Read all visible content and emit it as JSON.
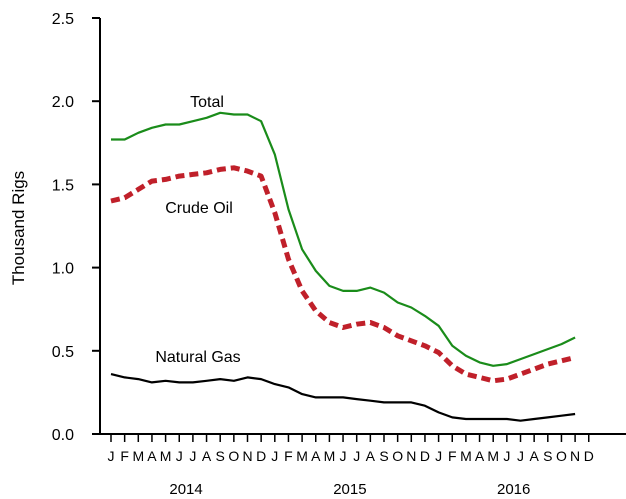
{
  "chart_data": {
    "type": "line",
    "title": "",
    "xlabel": "",
    "ylabel": "Thousand Rigs",
    "ylim": [
      0,
      2.5
    ],
    "yticks": [
      "0.0",
      "0.5",
      "1.0",
      "1.5",
      "2.0",
      "2.5"
    ],
    "month_labels": [
      "J",
      "F",
      "M",
      "A",
      "M",
      "J",
      "J",
      "A",
      "S",
      "O",
      "N",
      "D",
      "J",
      "F",
      "M",
      "A",
      "M",
      "J",
      "J",
      "A",
      "S",
      "O",
      "N",
      "D",
      "J",
      "F",
      "M",
      "A",
      "M",
      "J",
      "J",
      "A",
      "S",
      "O",
      "N",
      "D"
    ],
    "years": [
      "2014",
      "2015",
      "2016"
    ],
    "x": [
      "2014-01",
      "2014-02",
      "2014-03",
      "2014-04",
      "2014-05",
      "2014-06",
      "2014-07",
      "2014-08",
      "2014-09",
      "2014-10",
      "2014-11",
      "2014-12",
      "2015-01",
      "2015-02",
      "2015-03",
      "2015-04",
      "2015-05",
      "2015-06",
      "2015-07",
      "2015-08",
      "2015-09",
      "2015-10",
      "2015-11",
      "2015-12",
      "2016-01",
      "2016-02",
      "2016-03",
      "2016-04",
      "2016-05",
      "2016-06",
      "2016-07",
      "2016-08",
      "2016-09",
      "2016-10",
      "2016-11"
    ],
    "series": [
      {
        "name": "Total",
        "color": "#1a8c1a",
        "style": "solid",
        "values": [
          1.77,
          1.77,
          1.81,
          1.84,
          1.86,
          1.86,
          1.88,
          1.9,
          1.93,
          1.92,
          1.92,
          1.88,
          1.68,
          1.35,
          1.11,
          0.98,
          0.89,
          0.86,
          0.86,
          0.88,
          0.85,
          0.79,
          0.76,
          0.71,
          0.65,
          0.53,
          0.47,
          0.43,
          0.41,
          0.42,
          0.45,
          0.48,
          0.51,
          0.54,
          0.58
        ]
      },
      {
        "name": "Crude Oil",
        "color": "#c0202a",
        "style": "dashed",
        "values": [
          1.4,
          1.42,
          1.47,
          1.52,
          1.53,
          1.55,
          1.56,
          1.57,
          1.59,
          1.6,
          1.58,
          1.55,
          1.33,
          1.05,
          0.86,
          0.74,
          0.67,
          0.64,
          0.66,
          0.67,
          0.64,
          0.59,
          0.56,
          0.53,
          0.49,
          0.41,
          0.36,
          0.34,
          0.32,
          0.33,
          0.36,
          0.39,
          0.42,
          0.44,
          0.46
        ]
      },
      {
        "name": "Natural Gas",
        "color": "#000000",
        "style": "solid",
        "values": [
          0.36,
          0.34,
          0.33,
          0.31,
          0.32,
          0.31,
          0.31,
          0.32,
          0.33,
          0.32,
          0.34,
          0.33,
          0.3,
          0.28,
          0.24,
          0.22,
          0.22,
          0.22,
          0.21,
          0.2,
          0.19,
          0.19,
          0.19,
          0.17,
          0.13,
          0.1,
          0.09,
          0.09,
          0.09,
          0.09,
          0.08,
          0.09,
          0.1,
          0.11,
          0.12
        ]
      }
    ],
    "legend": "inline labels",
    "grid": false
  }
}
